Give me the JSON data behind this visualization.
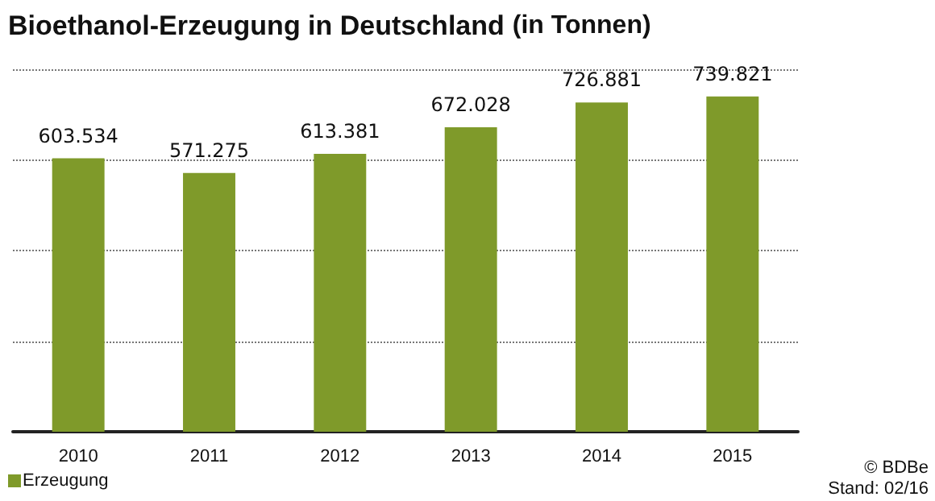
{
  "chart_data": {
    "type": "bar",
    "title": "Bioethanol-Erzeugung in Deutschland",
    "subtitle": "(in Tonnen)",
    "categories": [
      "2010",
      "2011",
      "2012",
      "2013",
      "2014",
      "2015"
    ],
    "series": [
      {
        "name": "Erzeugung",
        "color": "#7f9a2a",
        "values": [
          603534,
          571275,
          613381,
          672028,
          726881,
          739821
        ],
        "value_labels": [
          "603.534",
          "571.275",
          "613.381",
          "672.028",
          "726.881",
          "739.821"
        ]
      }
    ],
    "ylim": [
      0,
      800000
    ],
    "yticks": [
      {
        "value": 0,
        "label": null
      },
      {
        "value": 200000,
        "label": null
      },
      {
        "value": 400000,
        "label": null
      },
      {
        "value": 600000,
        "label": null
      },
      {
        "value": 800000,
        "label": null
      }
    ],
    "tick_labels": "x",
    "grid": "y",
    "legend": "bottom left",
    "annotations": [
      "© BDBe",
      "Stand: 02/16"
    ]
  }
}
